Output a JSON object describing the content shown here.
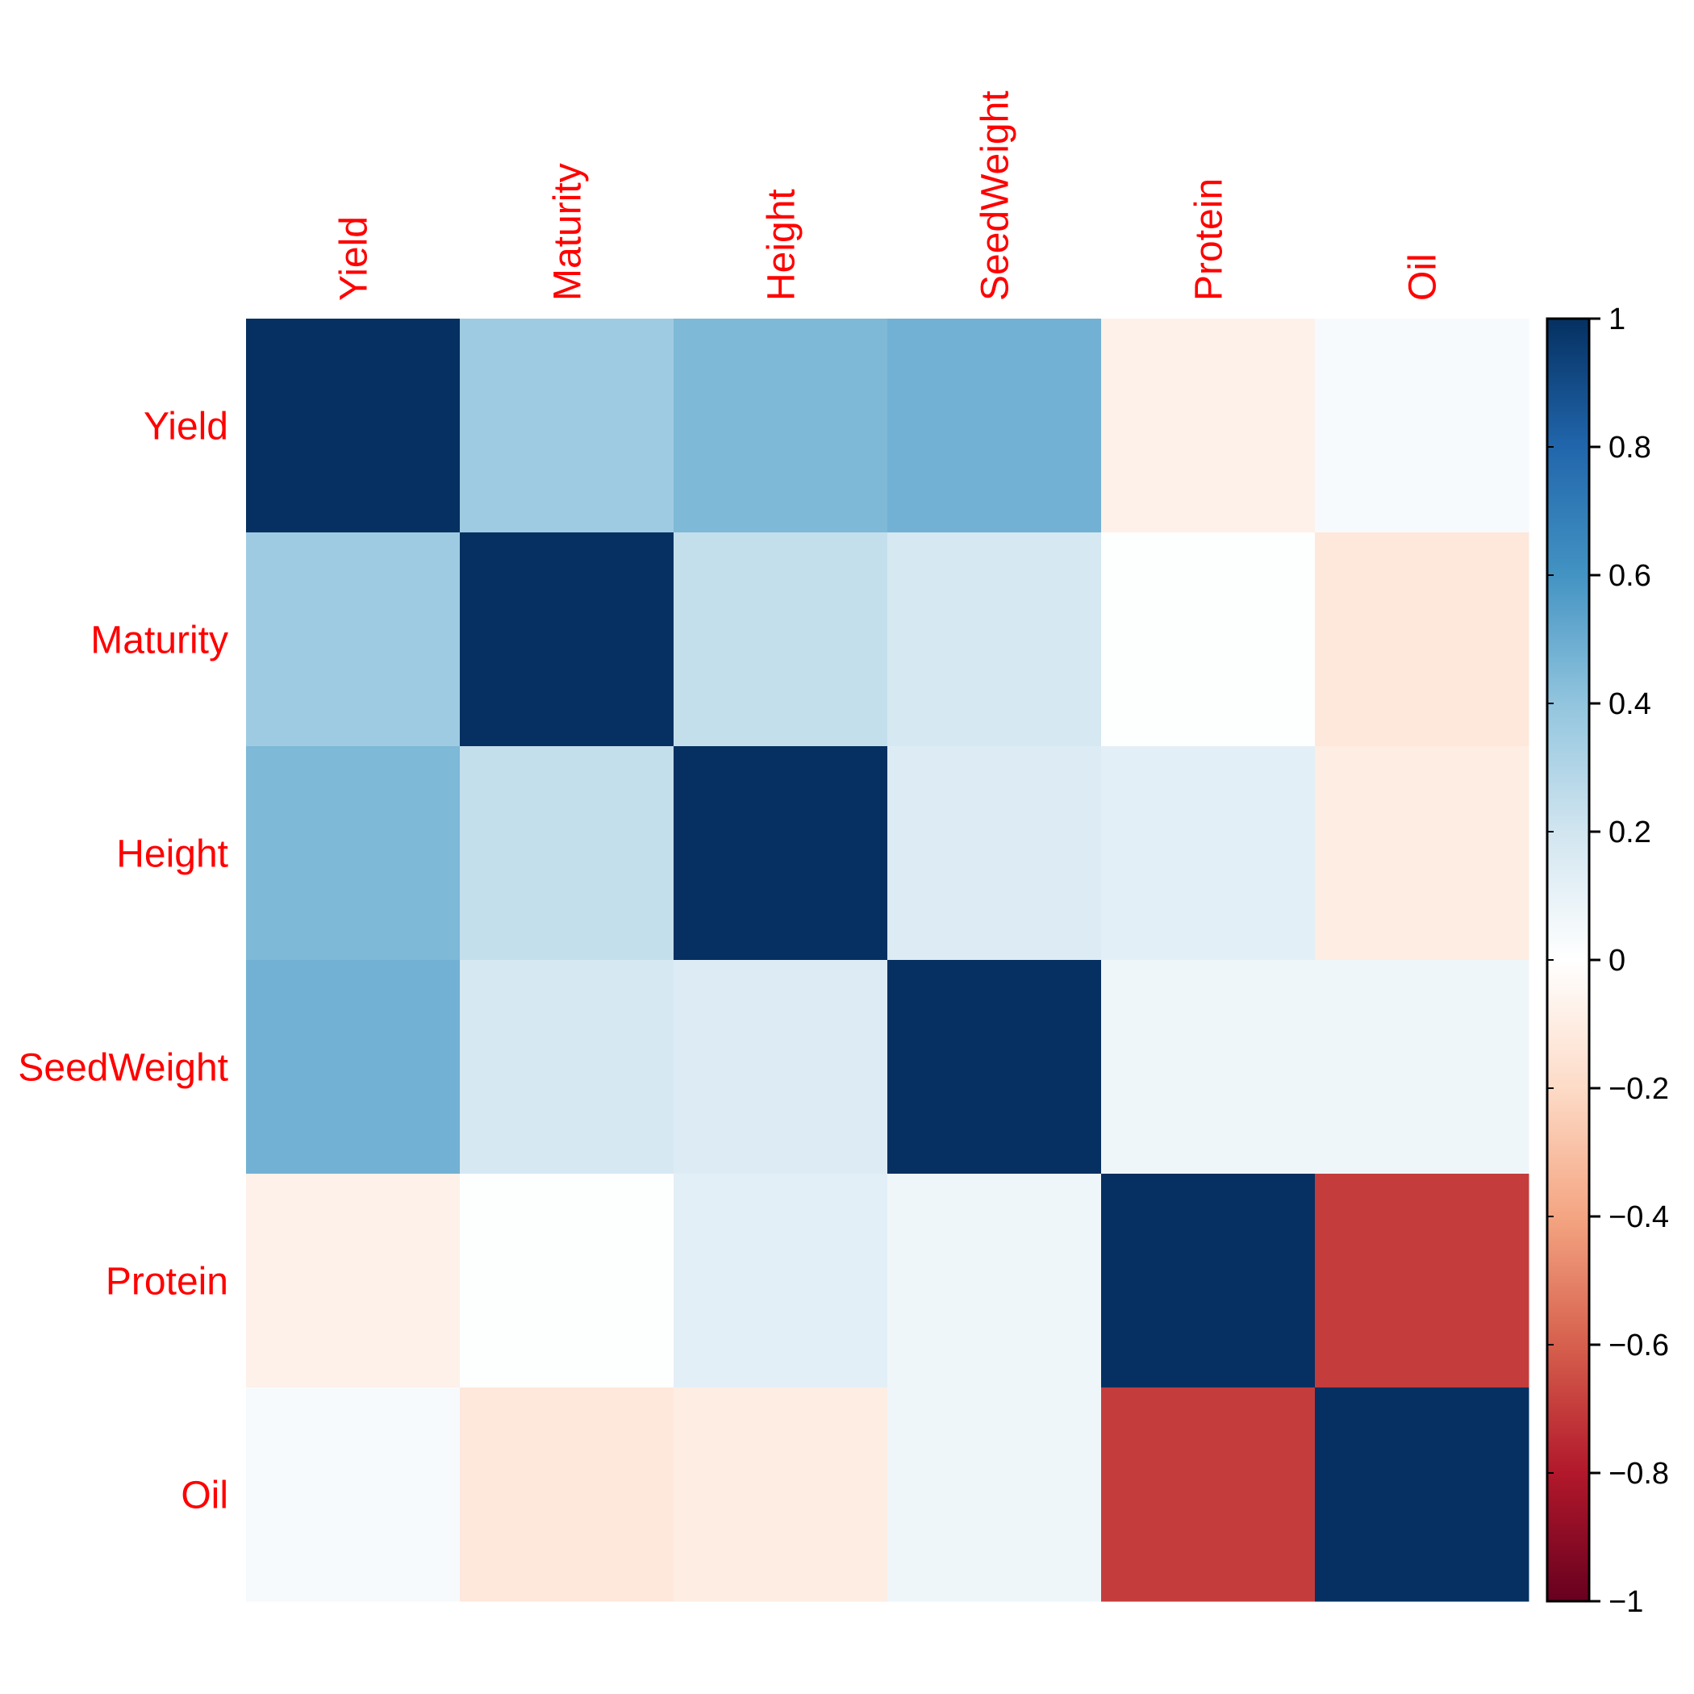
{
  "chart_data": {
    "type": "heatmap",
    "variables": [
      "Yield",
      "Maturity",
      "Height",
      "SeedWeight",
      "Protein",
      "Oil"
    ],
    "rows": [
      "Yield",
      "Maturity",
      "Height",
      "SeedWeight",
      "Protein",
      "Oil"
    ],
    "columns": [
      "Yield",
      "Maturity",
      "Height",
      "SeedWeight",
      "Protein",
      "Oil"
    ],
    "values": [
      [
        1.0,
        0.36,
        0.45,
        0.48,
        -0.08,
        0.04
      ],
      [
        0.36,
        1.0,
        0.24,
        0.18,
        0.01,
        -0.13
      ],
      [
        0.45,
        0.24,
        1.0,
        0.15,
        0.12,
        -0.1
      ],
      [
        0.48,
        0.18,
        0.15,
        1.0,
        0.07,
        0.07
      ],
      [
        -0.08,
        0.01,
        0.12,
        0.07,
        1.0,
        -0.7
      ],
      [
        0.04,
        -0.13,
        -0.1,
        0.07,
        -0.7,
        1.0
      ]
    ],
    "colorbar": {
      "range": [
        -1,
        1
      ],
      "ticks": [
        1,
        0.8,
        0.6,
        0.4,
        0.2,
        0,
        -0.2,
        -0.4,
        -0.6,
        -0.8,
        -1
      ],
      "tick_labels": [
        "1",
        "0.8",
        "0.6",
        "0.4",
        "0.2",
        "0",
        "−0.2",
        "−0.4",
        "−0.6",
        "−0.8",
        "−1"
      ],
      "palette": [
        "#67001F",
        "#B2182B",
        "#D6604D",
        "#F4A582",
        "#FDDBC7",
        "#FFFFFF",
        "#D1E5F0",
        "#92C5DE",
        "#4393C3",
        "#2166AC",
        "#053061"
      ]
    },
    "label_color": "#FF0000",
    "grid": false,
    "legend_position": "right"
  }
}
